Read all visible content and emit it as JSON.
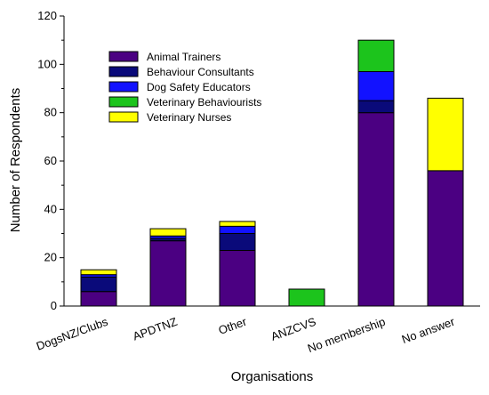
{
  "chart_data": {
    "type": "bar",
    "stacked": true,
    "xlabel": "Organisations",
    "ylabel": "Number of Respondents",
    "ylim": [
      0,
      120
    ],
    "yticks": [
      0,
      20,
      40,
      60,
      80,
      100,
      120
    ],
    "grid": false,
    "legend_position": "top-left",
    "categories": [
      "DogsNZ/Clubs",
      "APDTNZ",
      "Other",
      "ANZCVS",
      "No membership",
      "No answer"
    ],
    "series": [
      {
        "name": "Animal Trainers",
        "color": "#4b0082",
        "values": [
          6,
          27,
          23,
          0,
          80,
          56
        ]
      },
      {
        "name": "Behaviour Consultants",
        "color": "#0a0a7a",
        "values": [
          6,
          1,
          7,
          0,
          5,
          0
        ]
      },
      {
        "name": "Dog Safety Educators",
        "color": "#1212ff",
        "values": [
          1,
          1,
          3,
          0,
          12,
          0
        ]
      },
      {
        "name": "Veterinary Behaviourists",
        "color": "#1cc41c",
        "values": [
          0,
          0,
          0,
          7,
          13,
          0
        ]
      },
      {
        "name": "Veterinary Nurses",
        "color": "#ffff00",
        "values": [
          2,
          3,
          2,
          0,
          0,
          30
        ]
      }
    ]
  }
}
